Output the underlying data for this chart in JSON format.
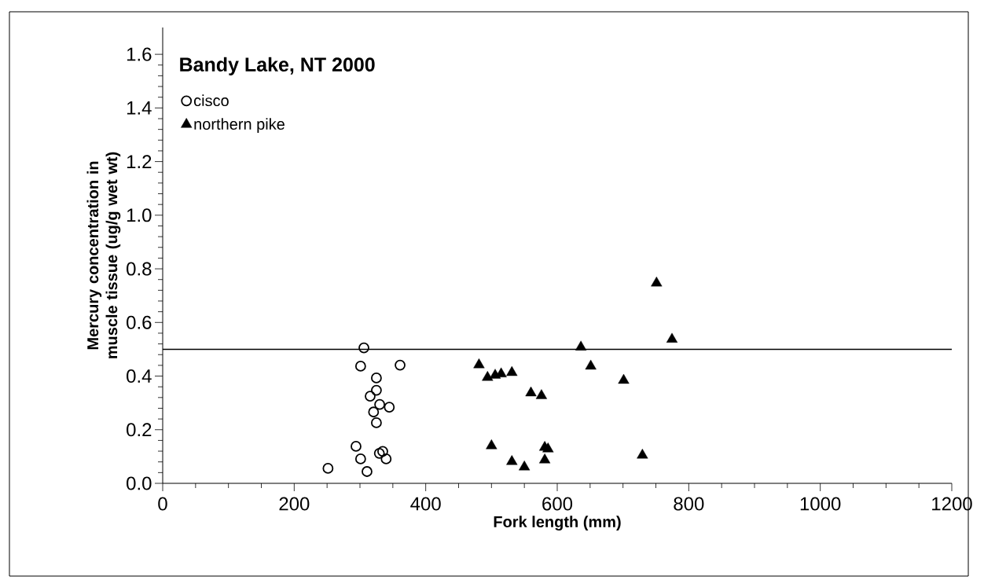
{
  "chart_data": {
    "type": "scatter",
    "title": "Bandy Lake, NT 2000",
    "xlabel": "Fork length (mm)",
    "ylabel": "Mercury concentration in muscle tissue (ug/g wet wt)",
    "xlim": [
      0,
      1200
    ],
    "ylim": [
      0,
      1.7
    ],
    "xticks": [
      0,
      200,
      400,
      600,
      800,
      1000,
      1200
    ],
    "yticks": [
      {
        "value": 0,
        "label": "0.0"
      },
      {
        "value": 0.2,
        "label": "0.2"
      },
      {
        "value": 0.4,
        "label": "0.4"
      },
      {
        "value": 0.6,
        "label": "0.6"
      },
      {
        "value": 0.8,
        "label": "0.8"
      },
      {
        "value": 1.0,
        "label": "1.0"
      },
      {
        "value": 1.2,
        "label": "1.2"
      },
      {
        "value": 1.4,
        "label": "1.4"
      },
      {
        "value": 1.6,
        "label": "1.6"
      }
    ],
    "grid": false,
    "legend": "top left",
    "ref_lines": [
      {
        "axis": "y",
        "value": 0.5,
        "label": null
      }
    ],
    "series": [
      {
        "name": "cisco",
        "color": "#000000",
        "marker": "circle",
        "x": [
          306,
          301,
          361,
          325,
          325,
          315.5,
          330,
          344.6,
          320.7,
          325,
          294,
          329.5,
          334.6,
          301,
          339.8,
          251.4,
          310.7
        ],
        "values": [
          0.505,
          0.437,
          0.441,
          0.393,
          0.347,
          0.325,
          0.294,
          0.284,
          0.266,
          0.226,
          0.138,
          0.112,
          0.119,
          0.091,
          0.091,
          0.056,
          0.044
        ]
      },
      {
        "name": "northern pike",
        "color": "#000000",
        "marker": "triangle",
        "x": [
          481,
          494,
          505.6,
          514.7,
          531,
          560,
          576,
          636,
          651,
          701,
          751,
          774.5,
          500,
          531,
          550,
          581,
          586,
          581,
          729.5
        ],
        "values": [
          0.442,
          0.395,
          0.403,
          0.408,
          0.413,
          0.337,
          0.327,
          0.508,
          0.437,
          0.384,
          0.747,
          0.537,
          0.14,
          0.081,
          0.061,
          0.134,
          0.128,
          0.087,
          0.105
        ]
      }
    ]
  }
}
